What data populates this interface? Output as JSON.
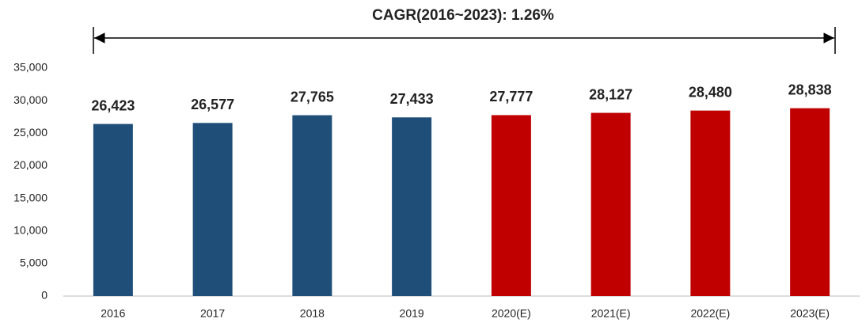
{
  "chart_data": {
    "type": "bar",
    "annotation": "CAGR(2016~2023): 1.26%",
    "categories": [
      "2016",
      "2017",
      "2018",
      "2019",
      "2020(E)",
      "2021(E)",
      "2022(E)",
      "2023(E)"
    ],
    "values": [
      26423,
      26577,
      27765,
      27433,
      27777,
      28127,
      28480,
      28838
    ],
    "value_labels": [
      "26,423",
      "26,577",
      "27,765",
      "27,433",
      "27,777",
      "28,127",
      "28,480",
      "28,838"
    ],
    "colors": [
      "#1f4e79",
      "#1f4e79",
      "#1f4e79",
      "#1f4e79",
      "#c00000",
      "#c00000",
      "#c00000",
      "#c00000"
    ],
    "ylim": [
      0,
      35000
    ],
    "yticks": [
      0,
      {
        "value": 5000,
        "label": "5,000"
      },
      {
        "value": 10000,
        "label": "10,000"
      },
      {
        "value": 15000,
        "label": "15,000"
      },
      {
        "value": 20000,
        "label": "20,000"
      },
      {
        "value": 25000,
        "label": "25,000"
      },
      {
        "value": 30000,
        "label": "30,000"
      },
      {
        "value": 35000,
        "label": "35,000"
      }
    ],
    "grid": false
  }
}
